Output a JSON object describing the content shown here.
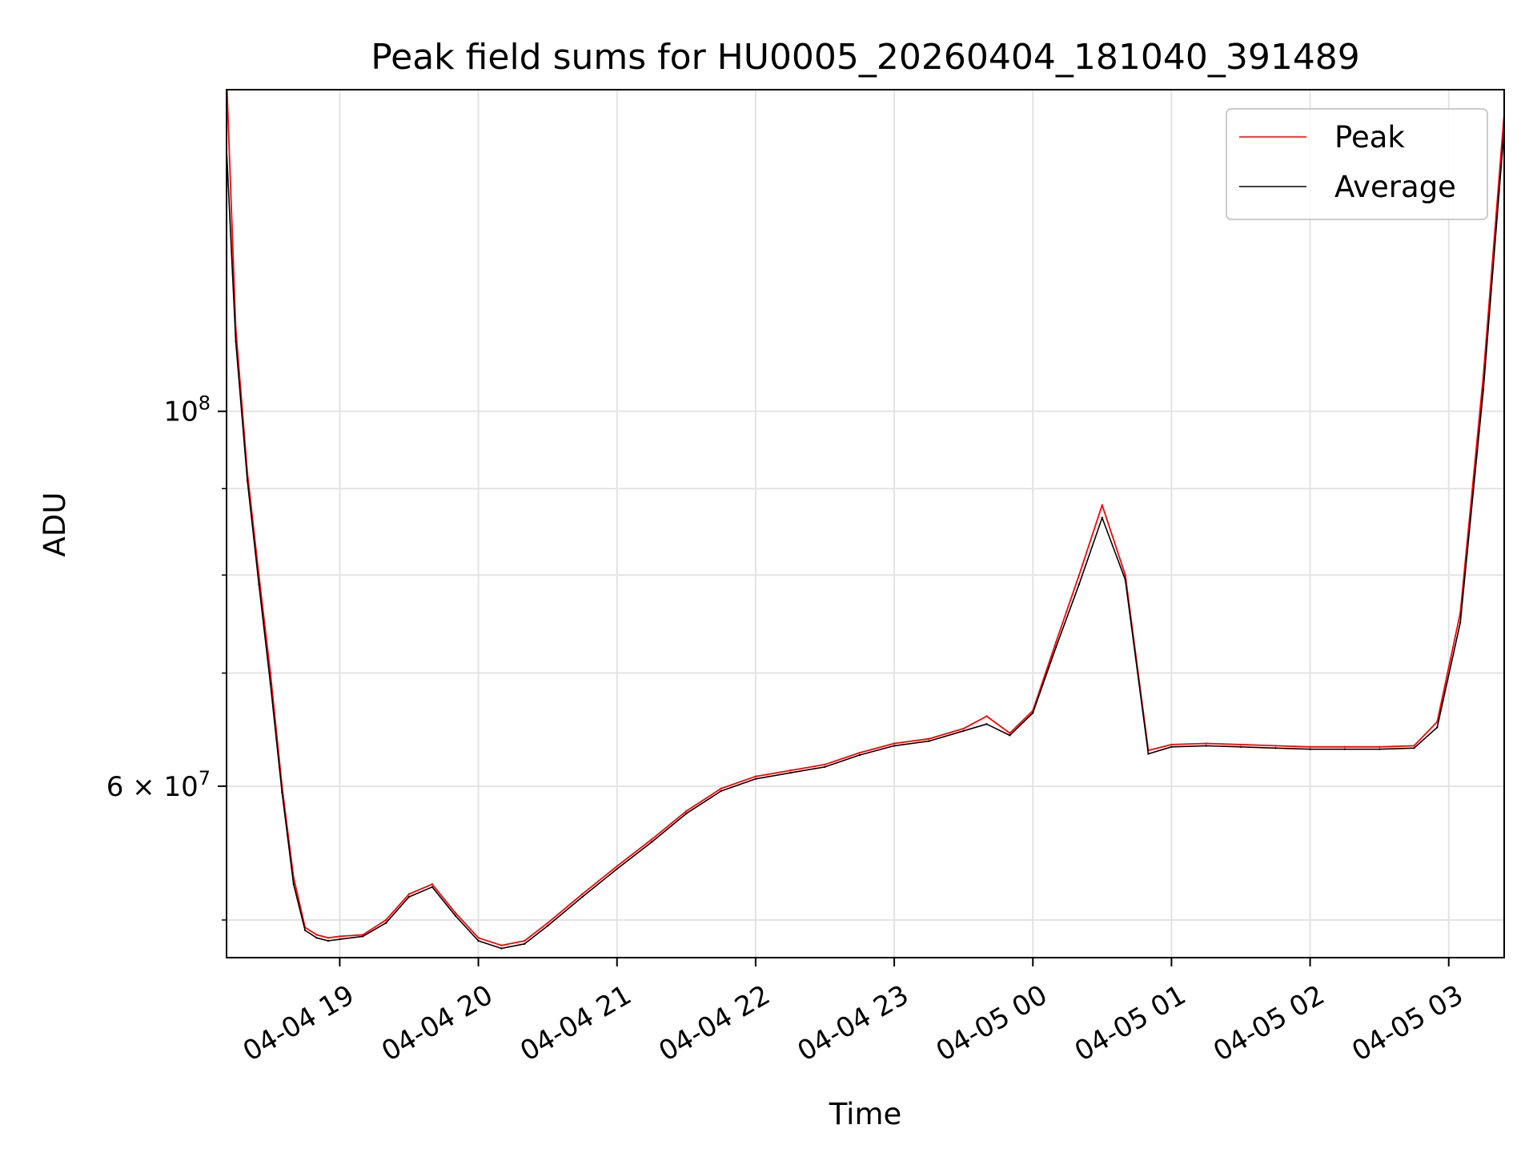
{
  "chart_data": {
    "type": "line",
    "title": "Peak field sums for HU0005_20260404_181040_391489",
    "xlabel": "Time",
    "ylabel": "ADU",
    "y_scale": "log",
    "grid": true,
    "legend_position": "top-right",
    "xlim": [
      "2026-04-04 18:11",
      "2026-04-05 03:24"
    ],
    "ylim": [
      47500000,
      155000000
    ],
    "x_ticks": [
      {
        "value": "2026-04-04 19:00",
        "label": "04-04 19"
      },
      {
        "value": "2026-04-04 20:00",
        "label": "04-04 20"
      },
      {
        "value": "2026-04-04 21:00",
        "label": "04-04 21"
      },
      {
        "value": "2026-04-04 22:00",
        "label": "04-04 22"
      },
      {
        "value": "2026-04-04 23:00",
        "label": "04-04 23"
      },
      {
        "value": "2026-04-05 00:00",
        "label": "04-05 00"
      },
      {
        "value": "2026-04-05 01:00",
        "label": "04-05 01"
      },
      {
        "value": "2026-04-05 02:00",
        "label": "04-05 02"
      },
      {
        "value": "2026-04-05 03:00",
        "label": "04-05 03"
      }
    ],
    "y_major_ticks": [
      {
        "value": 60000000,
        "label_mantissa": "6",
        "label_times": "×",
        "label_base": "10",
        "label_exp": "7"
      },
      {
        "value": 100000000,
        "label_mantissa": "",
        "label_times": "",
        "label_base": "10",
        "label_exp": "8"
      }
    ],
    "y_minor_ticks": [
      50000000,
      70000000,
      80000000,
      90000000
    ],
    "series": [
      {
        "name": "Peak",
        "color": "#ff0000",
        "x": [
          "2026-04-04 18:11",
          "2026-04-04 18:15",
          "2026-04-04 18:20",
          "2026-04-04 18:25",
          "2026-04-04 18:30",
          "2026-04-04 18:35",
          "2026-04-04 18:40",
          "2026-04-04 18:45",
          "2026-04-04 18:50",
          "2026-04-04 18:55",
          "2026-04-04 19:00",
          "2026-04-04 19:10",
          "2026-04-04 19:20",
          "2026-04-04 19:30",
          "2026-04-04 19:40",
          "2026-04-04 19:50",
          "2026-04-04 20:00",
          "2026-04-04 20:10",
          "2026-04-04 20:20",
          "2026-04-04 20:30",
          "2026-04-04 20:45",
          "2026-04-04 21:00",
          "2026-04-04 21:15",
          "2026-04-04 21:30",
          "2026-04-04 21:45",
          "2026-04-04 22:00",
          "2026-04-04 22:15",
          "2026-04-04 22:30",
          "2026-04-04 22:45",
          "2026-04-04 23:00",
          "2026-04-04 23:15",
          "2026-04-04 23:30",
          "2026-04-04 23:40",
          "2026-04-04 23:50",
          "2026-04-05 00:00",
          "2026-04-05 00:10",
          "2026-04-05 00:20",
          "2026-04-05 00:30",
          "2026-04-05 00:40",
          "2026-04-05 00:50",
          "2026-04-05 01:00",
          "2026-04-05 01:15",
          "2026-04-05 01:30",
          "2026-04-05 01:45",
          "2026-04-05 02:00",
          "2026-04-05 02:15",
          "2026-04-05 02:30",
          "2026-04-05 02:45",
          "2026-04-05 02:55",
          "2026-04-05 03:05",
          "2026-04-05 03:15",
          "2026-04-05 03:24"
        ],
        "values": [
          158000000,
          112000000,
          92000000,
          80000000,
          70000000,
          60000000,
          53000000,
          49500000,
          49000000,
          48800000,
          48900000,
          49000000,
          50000000,
          51800000,
          52500000,
          50500000,
          48800000,
          48300000,
          48600000,
          49800000,
          51800000,
          53800000,
          55800000,
          58000000,
          59800000,
          60800000,
          61300000,
          61800000,
          62800000,
          63600000,
          64000000,
          64900000,
          66000000,
          64500000,
          66500000,
          73000000,
          80000000,
          88000000,
          80000000,
          63000000,
          63500000,
          63600000,
          63500000,
          63400000,
          63300000,
          63300000,
          63300000,
          63400000,
          65500000,
          76000000,
          105000000,
          150000000
        ]
      },
      {
        "name": "Average",
        "color": "#000000",
        "x": [
          "2026-04-04 18:11",
          "2026-04-04 18:15",
          "2026-04-04 18:20",
          "2026-04-04 18:25",
          "2026-04-04 18:30",
          "2026-04-04 18:35",
          "2026-04-04 18:40",
          "2026-04-04 18:45",
          "2026-04-04 18:50",
          "2026-04-04 18:55",
          "2026-04-04 19:00",
          "2026-04-04 19:10",
          "2026-04-04 19:20",
          "2026-04-04 19:30",
          "2026-04-04 19:40",
          "2026-04-04 19:50",
          "2026-04-04 20:00",
          "2026-04-04 20:10",
          "2026-04-04 20:20",
          "2026-04-04 20:30",
          "2026-04-04 20:45",
          "2026-04-04 21:00",
          "2026-04-04 21:15",
          "2026-04-04 21:30",
          "2026-04-04 21:45",
          "2026-04-04 22:00",
          "2026-04-04 22:15",
          "2026-04-04 22:30",
          "2026-04-04 22:45",
          "2026-04-04 23:00",
          "2026-04-04 23:15",
          "2026-04-04 23:30",
          "2026-04-04 23:40",
          "2026-04-04 23:50",
          "2026-04-05 00:00",
          "2026-04-05 00:10",
          "2026-04-05 00:20",
          "2026-04-05 00:30",
          "2026-04-05 00:40",
          "2026-04-05 00:50",
          "2026-04-05 01:00",
          "2026-04-05 01:15",
          "2026-04-05 01:30",
          "2026-04-05 01:45",
          "2026-04-05 02:00",
          "2026-04-05 02:15",
          "2026-04-05 02:30",
          "2026-04-05 02:45",
          "2026-04-05 02:55",
          "2026-04-05 03:05",
          "2026-04-05 03:15",
          "2026-04-05 03:24"
        ],
        "values": [
          143000000,
          110000000,
          91000000,
          79000000,
          69000000,
          59500000,
          52500000,
          49300000,
          48800000,
          48600000,
          48700000,
          48900000,
          49800000,
          51600000,
          52300000,
          50300000,
          48600000,
          48100000,
          48400000,
          49600000,
          51600000,
          53600000,
          55600000,
          57800000,
          59600000,
          60600000,
          61100000,
          61600000,
          62600000,
          63400000,
          63800000,
          64700000,
          65300000,
          64300000,
          66300000,
          72500000,
          79000000,
          86500000,
          79500000,
          62700000,
          63300000,
          63400000,
          63300000,
          63200000,
          63100000,
          63100000,
          63100000,
          63200000,
          65000000,
          75000000,
          103000000,
          147000000
        ]
      }
    ]
  }
}
